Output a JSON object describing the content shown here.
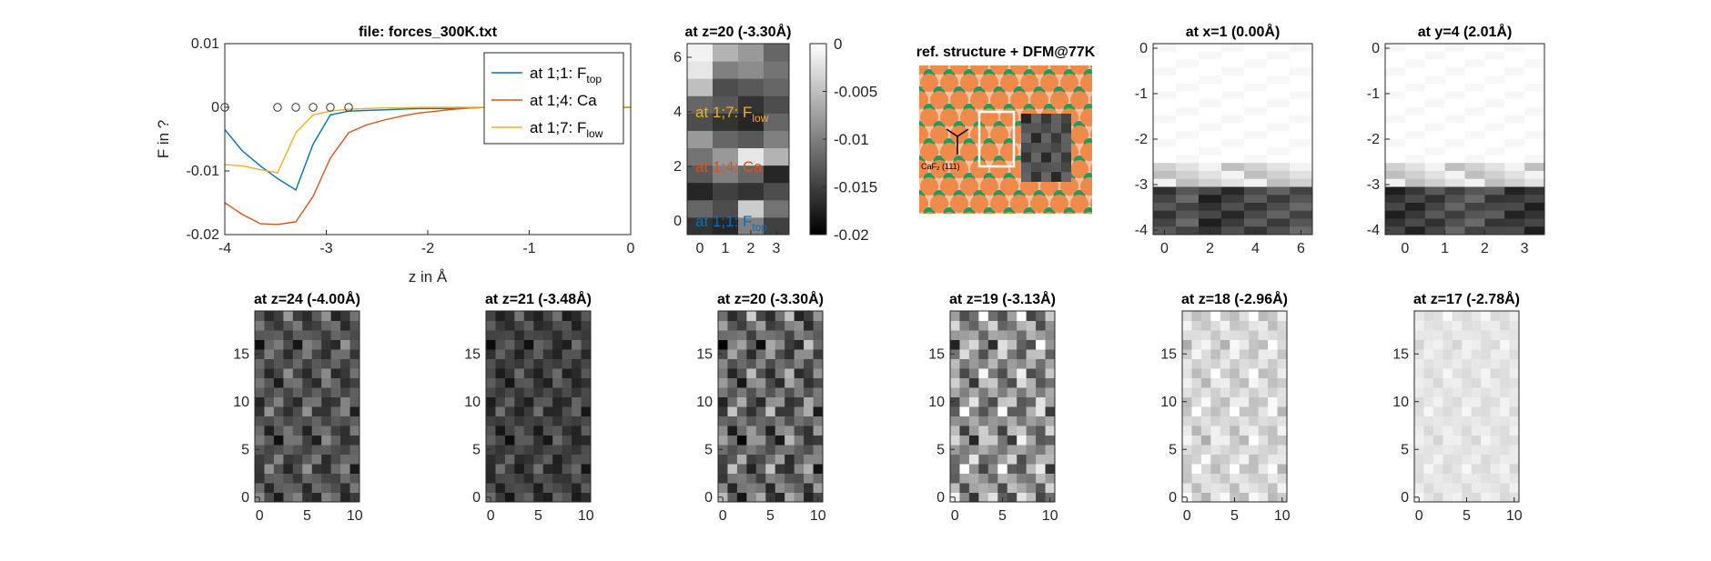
{
  "figure": {
    "background": "#ffffff"
  },
  "chart_data": [
    {
      "id": "force_curve",
      "type": "line",
      "title": "file: forces_300K.txt",
      "xlabel": "z in Å",
      "ylabel": "F in ?",
      "xlim": [
        -4,
        0
      ],
      "ylim": [
        -0.02,
        0.01
      ],
      "xticks": [
        -4,
        -3,
        -2,
        -1,
        0
      ],
      "xtick_labels": [
        "-4",
        "-3",
        "-2",
        "-1",
        "0"
      ],
      "yticks": [
        -0.02,
        -0.01,
        0,
        0.01
      ],
      "ytick_labels": [
        "-0.02",
        "-0.01",
        "0",
        "0.01"
      ],
      "legend_position": "top-right",
      "series": [
        {
          "name": "at 1;1: F",
          "sub": "top",
          "color": "#0072BD",
          "x": [
            -4.0,
            -3.83,
            -3.65,
            -3.48,
            -3.3,
            -3.13,
            -2.96,
            -2.78,
            -2.61,
            -2.43,
            -2.26,
            -2.09,
            -1.91,
            -1.74,
            -1.57,
            -1.39,
            -1.22,
            -1.04,
            -0.87,
            -0.7,
            -0.52,
            -0.35,
            -0.17,
            0.0
          ],
          "y": [
            -0.0035,
            -0.0068,
            -0.0092,
            -0.0112,
            -0.013,
            -0.0058,
            -0.0012,
            -0.0006,
            -0.0005,
            -0.0004,
            -0.0003,
            -0.0002,
            -0.0002,
            -0.0002,
            -0.0001,
            0.0,
            0.0001,
            0.0001,
            0.0001,
            0.0001,
            0.0001,
            0.0,
            0.0,
            0.0
          ]
        },
        {
          "name": "at 1;4: Ca",
          "sub": "",
          "color": "#D95319",
          "x": [
            -4.0,
            -3.83,
            -3.65,
            -3.48,
            -3.3,
            -3.13,
            -2.96,
            -2.78,
            -2.61,
            -2.43,
            -2.26,
            -2.09,
            -1.91,
            -1.74,
            -1.57,
            -1.39,
            -1.22,
            -1.04,
            -0.87,
            -0.7,
            -0.52,
            -0.35,
            -0.17,
            0.0
          ],
          "y": [
            -0.015,
            -0.0168,
            -0.0183,
            -0.0184,
            -0.018,
            -0.014,
            -0.008,
            -0.004,
            -0.0028,
            -0.002,
            -0.0014,
            -0.0009,
            -0.0006,
            -0.0003,
            -0.0001,
            0.0,
            0.0001,
            0.0001,
            0.0001,
            0.0001,
            0.0,
            0.0,
            0.0,
            0.0
          ]
        },
        {
          "name": "at 1;7: F",
          "sub": "low",
          "color": "#EDB120",
          "x": [
            -4.0,
            -3.83,
            -3.65,
            -3.48,
            -3.3,
            -3.13,
            -2.96,
            -2.78,
            -2.61,
            -2.43,
            -2.26,
            -2.09,
            -1.91,
            -1.74,
            -1.57,
            -1.39,
            -1.22,
            -1.04,
            -0.87,
            -0.7,
            -0.52,
            -0.35,
            -0.17,
            0.0
          ],
          "y": [
            -0.009,
            -0.0092,
            -0.0098,
            -0.0103,
            -0.004,
            -0.0012,
            -0.0006,
            -0.0003,
            -0.0002,
            -0.0001,
            -0.0001,
            0.0,
            0.0,
            0.0,
            0.0,
            0.0,
            0.0,
            0.0,
            0.0,
            0.0,
            0.0,
            0.0,
            0.0,
            0.0
          ]
        }
      ],
      "markers": {
        "style": "open-circle",
        "x": [
          -4.0,
          -3.48,
          -3.3,
          -3.13,
          -2.96,
          -2.78
        ],
        "y": [
          0,
          0,
          0,
          0,
          0,
          0
        ]
      }
    },
    {
      "id": "slice_z20_small",
      "type": "heatmap",
      "title": "at z=20 (-3.30Å)",
      "xlim": [
        -0.5,
        3.5
      ],
      "ylim": [
        -0.5,
        6.5
      ],
      "xticks": [
        0,
        1,
        2,
        3
      ],
      "xtick_labels": [
        "0",
        "1",
        "2",
        "3"
      ],
      "yticks": [
        0,
        2,
        4,
        6
      ],
      "ytick_labels": [
        "0",
        "2",
        "4",
        "6"
      ],
      "colormap": "gray",
      "clim": [
        -0.02,
        0
      ],
      "colorbar": {
        "ticks": [
          0,
          -0.005,
          -0.01,
          -0.015,
          -0.02
        ],
        "tick_labels": [
          "0",
          "-0.005",
          "-0.01",
          "-0.015",
          "-0.02"
        ]
      },
      "values": [
        [
          -0.016,
          -0.017,
          -0.01,
          -0.015
        ],
        [
          -0.012,
          -0.014,
          -0.004,
          -0.011
        ],
        [
          -0.017,
          -0.015,
          -0.016,
          -0.014
        ],
        [
          -0.013,
          -0.01,
          -0.012,
          -0.017
        ],
        [
          -0.011,
          -0.008,
          -0.002,
          -0.006
        ],
        [
          -0.008,
          -0.012,
          -0.013,
          -0.01
        ],
        [
          -0.014,
          -0.016,
          -0.017,
          -0.012
        ],
        [
          -0.012,
          -0.013,
          -0.016,
          -0.014
        ],
        [
          -0.005,
          -0.014,
          -0.013,
          -0.012
        ],
        [
          -0.002,
          -0.01,
          -0.009,
          -0.011
        ],
        [
          -0.001,
          -0.006,
          -0.008,
          -0.012
        ]
      ],
      "annotations": [
        {
          "x": 0,
          "y": 4,
          "text": "at 1;7: F",
          "sub": "low",
          "color": "#EDB120"
        },
        {
          "x": 0,
          "y": 2,
          "text": "at 1;4: Ca",
          "sub": "",
          "color": "#D95319"
        },
        {
          "x": 0,
          "y": 0,
          "text": "at 1;1: F",
          "sub": "top",
          "color": "#0072BD"
        }
      ]
    },
    {
      "id": "reference",
      "type": "image",
      "title": "ref. structure + DFM@77K",
      "inset_label": "CaF₂ (111)",
      "atom_colors": {
        "ca": "#F08A4B",
        "ca_light": "#F6C3A2",
        "f": "#1E9B5E"
      }
    },
    {
      "id": "xslice",
      "type": "heatmap",
      "title": "at x=1 (0.00Å)",
      "xlim": [
        -0.5,
        6.5
      ],
      "ylim": [
        -4.1,
        0.1
      ],
      "xticks": [
        0,
        2,
        4,
        6
      ],
      "xtick_labels": [
        "0",
        "2",
        "4",
        "6"
      ],
      "yticks": [
        0,
        -1,
        -2,
        -3,
        -4
      ],
      "ytick_labels": [
        "0",
        "-1",
        "-2",
        "-3",
        "-4"
      ],
      "colormap": "gray",
      "clim": [
        -0.02,
        0
      ],
      "cols": 7,
      "profile": [
        0.75,
        0.55,
        0.95,
        0.85,
        0.7,
        0.65,
        0.55
      ]
    },
    {
      "id": "yslice",
      "type": "heatmap",
      "title": "at y=4 (2.01Å)",
      "xlim": [
        -0.5,
        3.5
      ],
      "ylim": [
        -4.1,
        0.1
      ],
      "xticks": [
        0,
        1,
        2,
        3
      ],
      "xtick_labels": [
        "0",
        "1",
        "2",
        "3"
      ],
      "yticks": [
        0,
        -1,
        -2,
        -3,
        -4
      ],
      "ytick_labels": [
        "0",
        "-1",
        "-2",
        "-3",
        "-4"
      ],
      "colormap": "gray",
      "clim": [
        -0.02,
        0
      ],
      "cols": 8,
      "profile": [
        0.95,
        0.9,
        0.75,
        0.6,
        0.55,
        0.7,
        0.9,
        0.95
      ]
    },
    {
      "id": "slice_z24",
      "type": "heatmap",
      "title": "at z=24 (-4.00Å)",
      "xlim": [
        -0.5,
        10.5
      ],
      "ylim": [
        -0.5,
        19.5
      ],
      "xticks": [
        0,
        5,
        10
      ],
      "xtick_labels": [
        "0",
        "5",
        "10"
      ],
      "yticks": [
        0,
        5,
        10,
        15
      ],
      "ytick_labels": [
        "0",
        "5",
        "10",
        "15"
      ],
      "colormap": "gray",
      "clim": [
        -0.02,
        0
      ],
      "base": -0.0135,
      "amplitude": 0.0045
    },
    {
      "id": "slice_z21",
      "type": "heatmap",
      "title": "at z=21 (-3.48Å)",
      "xlim": [
        -0.5,
        10.5
      ],
      "ylim": [
        -0.5,
        19.5
      ],
      "xticks": [
        0,
        5,
        10
      ],
      "xtick_labels": [
        "0",
        "5",
        "10"
      ],
      "yticks": [
        0,
        5,
        10,
        15
      ],
      "ytick_labels": [
        "0",
        "5",
        "10",
        "15"
      ],
      "colormap": "gray",
      "clim": [
        -0.02,
        0
      ],
      "base": -0.015,
      "amplitude": 0.0035
    },
    {
      "id": "slice_z20",
      "type": "heatmap",
      "title": "at z=20 (-3.30Å)",
      "xlim": [
        -0.5,
        10.5
      ],
      "ylim": [
        -0.5,
        19.5
      ],
      "xticks": [
        0,
        5,
        10
      ],
      "xtick_labels": [
        "0",
        "5",
        "10"
      ],
      "yticks": [
        0,
        5,
        10,
        15
      ],
      "ytick_labels": [
        "0",
        "5",
        "10",
        "15"
      ],
      "colormap": "gray",
      "clim": [
        -0.02,
        0
      ],
      "base": -0.012,
      "amplitude": 0.0065
    },
    {
      "id": "slice_z19",
      "type": "heatmap",
      "title": "at z=19 (-3.13Å)",
      "xlim": [
        -0.5,
        10.5
      ],
      "ylim": [
        -0.5,
        19.5
      ],
      "xticks": [
        0,
        5,
        10
      ],
      "xtick_labels": [
        "0",
        "5",
        "10"
      ],
      "yticks": [
        0,
        5,
        10,
        15
      ],
      "ytick_labels": [
        "0",
        "5",
        "10",
        "15"
      ],
      "colormap": "gray",
      "clim": [
        -0.02,
        0
      ],
      "base": -0.0085,
      "amplitude": 0.0075
    },
    {
      "id": "slice_z18",
      "type": "heatmap",
      "title": "at z=18 (-2.96Å)",
      "xlim": [
        -0.5,
        10.5
      ],
      "ylim": [
        -0.5,
        19.5
      ],
      "xticks": [
        0,
        5,
        10
      ],
      "xtick_labels": [
        "0",
        "5",
        "10"
      ],
      "yticks": [
        0,
        5,
        10,
        15
      ],
      "ytick_labels": [
        "0",
        "5",
        "10",
        "15"
      ],
      "colormap": "gray",
      "clim": [
        -0.02,
        0
      ],
      "base": -0.003,
      "amplitude": 0.003
    },
    {
      "id": "slice_z17",
      "type": "heatmap",
      "title": "at z=17 (-2.78Å)",
      "xlim": [
        -0.5,
        10.5
      ],
      "ylim": [
        -0.5,
        19.5
      ],
      "xticks": [
        0,
        5,
        10
      ],
      "xtick_labels": [
        "0",
        "5",
        "10"
      ],
      "yticks": [
        0,
        5,
        10,
        15
      ],
      "ytick_labels": [
        "0",
        "5",
        "10",
        "15"
      ],
      "colormap": "gray",
      "clim": [
        -0.02,
        0
      ],
      "base": -0.002,
      "amplitude": 0.0012
    }
  ]
}
